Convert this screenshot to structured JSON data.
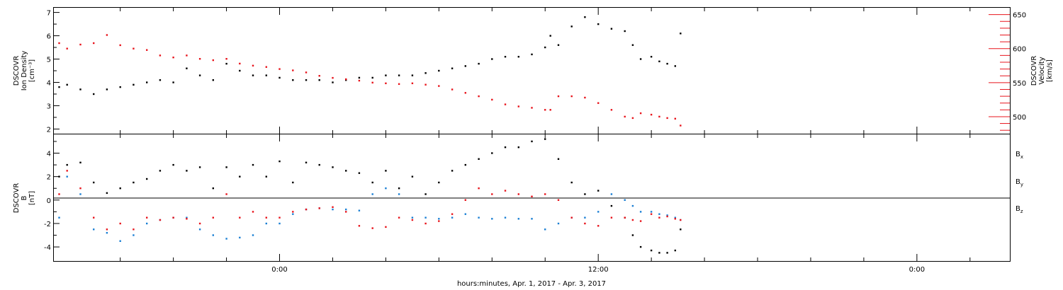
{
  "chart_data": [
    {
      "type": "scatter",
      "panel": "top",
      "ylabel_left": [
        "DSCOVR",
        "Ion Density",
        "[cm⁻³]"
      ],
      "ylabel_right": [
        "DSCOVR",
        "Velocity",
        "[km/s]"
      ],
      "ylim_left": [
        1.8,
        7.2
      ],
      "ylim_right": [
        475,
        660
      ],
      "yticks_left": [
        "2",
        "3",
        "4",
        "5",
        "6",
        "7"
      ],
      "yticks_right": [
        "500",
        "550",
        "600",
        "650"
      ],
      "colors": {
        "density": "#000000",
        "velocity": "#e8141c"
      },
      "series": [
        {
          "axis": "left",
          "x_hours": [
            -8.3,
            -8,
            -7.5,
            -7,
            -6.5,
            -6,
            -5.5,
            -5,
            -4.5,
            -4,
            -3.5,
            -3,
            -2.5,
            -2,
            -1.5,
            -1,
            -0.5,
            0,
            0.5,
            1,
            1.5,
            2,
            2.5,
            3,
            3.5,
            4,
            4.5,
            5,
            5.5,
            6,
            6.5,
            7,
            7.5,
            8,
            8.5,
            9,
            9.5,
            10,
            10.2,
            10.5,
            11,
            11.5,
            12,
            12.5,
            13,
            13.3,
            13.6,
            14,
            14.3,
            14.6,
            14.9,
            15.1
          ],
          "values": [
            3.8,
            3.9,
            3.7,
            3.5,
            3.7,
            3.8,
            3.9,
            4.0,
            4.1,
            4.0,
            4.6,
            4.3,
            4.1,
            4.8,
            4.5,
            4.3,
            4.3,
            4.2,
            4.1,
            4.1,
            4.1,
            4.0,
            4.1,
            4.2,
            4.2,
            4.3,
            4.3,
            4.3,
            4.4,
            4.5,
            4.6,
            4.7,
            4.8,
            5.0,
            5.1,
            5.1,
            5.2,
            5.5,
            6.0,
            5.6,
            6.4,
            6.8,
            6.5,
            6.3,
            6.2,
            5.6,
            5.0,
            5.1,
            4.9,
            4.8,
            4.7,
            6.1
          ]
        },
        {
          "axis": "right",
          "x_hours": [
            -8.3,
            -8,
            -7.5,
            -7,
            -6.5,
            -6,
            -5.5,
            -5,
            -4.5,
            -4,
            -3.5,
            -3,
            -2.5,
            -2,
            -1.5,
            -1,
            -0.5,
            0,
            0.5,
            1,
            1.5,
            2,
            2.5,
            3,
            3.5,
            4,
            4.5,
            5,
            5.5,
            6,
            6.5,
            7,
            7.5,
            8,
            8.5,
            9,
            9.5,
            10,
            10.2,
            10.5,
            11,
            11.5,
            12,
            12.5,
            13,
            13.3,
            13.6,
            14,
            14.3,
            14.6,
            14.9,
            15.1
          ],
          "values": [
            608,
            600,
            606,
            608,
            620,
            605,
            600,
            598,
            590,
            587,
            590,
            585,
            583,
            585,
            578,
            575,
            573,
            570,
            568,
            565,
            560,
            557,
            555,
            553,
            550,
            549,
            548,
            549,
            547,
            545,
            540,
            535,
            530,
            525,
            518,
            515,
            513,
            510,
            510,
            530,
            530,
            528,
            520,
            510,
            500,
            498,
            505,
            503,
            500,
            498,
            497,
            487
          ]
        }
      ]
    },
    {
      "type": "scatter",
      "panel": "bottom",
      "ylabel": [
        "DSCOVR",
        "B",
        "[nT]"
      ],
      "ylim": [
        -5.2,
        5.6
      ],
      "yticks": [
        "-4",
        "-2",
        "0",
        "2",
        "4"
      ],
      "xlabel": "hours:minutes, Apr.  1, 2017 - Apr.  3, 2017",
      "xticks": [
        "0:00",
        "12:00",
        "0:00"
      ],
      "xlim_hours": [
        -8.5,
        27.5
      ],
      "zero_line": true,
      "series": [
        {
          "name": "Bₓ",
          "color": "#000000",
          "x_hours": [
            -8.3,
            -8,
            -7.5,
            -7,
            -6.5,
            -6,
            -5.5,
            -5,
            -4.5,
            -4,
            -3.5,
            -3,
            -2.5,
            -2,
            -1.5,
            -1,
            -0.5,
            0,
            0.5,
            1,
            1.5,
            2,
            2.5,
            3,
            3.5,
            4,
            4.5,
            5,
            5.5,
            6,
            6.5,
            7,
            7.5,
            8,
            8.5,
            9,
            9.5,
            10,
            10.5,
            11,
            11.5,
            12,
            12.5,
            13,
            13.3,
            13.6,
            14,
            14.3,
            14.6,
            14.9,
            15.1
          ],
          "values": [
            2.0,
            3.0,
            3.2,
            1.5,
            0.6,
            1.0,
            1.5,
            1.8,
            2.5,
            3.0,
            2.5,
            2.8,
            1.0,
            2.8,
            2.0,
            3.0,
            2.0,
            3.3,
            1.5,
            3.2,
            3.0,
            2.8,
            2.5,
            2.3,
            1.5,
            2.5,
            1.0,
            2.0,
            0.5,
            1.5,
            2.5,
            3.0,
            3.5,
            4.0,
            4.5,
            4.5,
            5.0,
            5.2,
            3.5,
            1.5,
            0.5,
            0.8,
            -0.5,
            -1.5,
            -3.0,
            -4.0,
            -4.3,
            -4.5,
            -4.5,
            -4.3,
            -2.5
          ]
        },
        {
          "name": "B_y",
          "color": "#1a7fd4",
          "x_hours": [
            -8.3,
            -8,
            -7.5,
            -7,
            -6.5,
            -6,
            -5.5,
            -5,
            -4.5,
            -4,
            -3.5,
            -3,
            -2.5,
            -2,
            -1.5,
            -1,
            -0.5,
            0,
            0.5,
            1,
            1.5,
            2,
            2.5,
            3,
            3.5,
            4,
            4.5,
            5,
            5.5,
            6,
            6.5,
            7,
            7.5,
            8,
            8.5,
            9,
            9.5,
            10,
            10.5,
            11,
            11.5,
            12,
            12.5,
            13,
            13.3,
            13.6,
            14,
            14.3,
            14.6,
            14.9,
            15.1
          ],
          "values": [
            -1.5,
            2.0,
            0.5,
            -2.5,
            -2.8,
            -3.5,
            -3.0,
            -2.0,
            -1.7,
            -1.5,
            -1.5,
            -2.5,
            -3.0,
            -3.3,
            -3.2,
            -3.0,
            -2.0,
            -2.0,
            -1.2,
            -0.8,
            -0.7,
            -0.8,
            -0.8,
            -0.9,
            0.5,
            1.0,
            0.5,
            -1.5,
            -1.5,
            -1.6,
            -1.5,
            -1.2,
            -1.5,
            -1.6,
            -1.5,
            -1.6,
            -1.6,
            -2.5,
            -2.0,
            -1.5,
            -1.5,
            -1.0,
            0.5,
            0.0,
            -0.5,
            -1.0,
            -1.0,
            -1.2,
            -1.3,
            -1.5,
            -1.7
          ]
        },
        {
          "name": "B_z",
          "color": "#e8141c",
          "x_hours": [
            -8.3,
            -8,
            -7.5,
            -7,
            -6.5,
            -6,
            -5.5,
            -5,
            -4.5,
            -4,
            -3.5,
            -3,
            -2.5,
            -2,
            -1.5,
            -1,
            -0.5,
            0,
            0.5,
            1,
            1.5,
            2,
            2.5,
            3,
            3.5,
            4,
            4.5,
            5,
            5.5,
            6,
            6.5,
            7,
            7.5,
            8,
            8.5,
            9,
            9.5,
            10,
            10.5,
            11,
            11.5,
            12,
            12.5,
            13,
            13.3,
            13.6,
            14,
            14.3,
            14.6,
            14.9,
            15.1
          ],
          "values": [
            0.5,
            2.5,
            1.0,
            -1.5,
            -2.5,
            -2.0,
            -2.5,
            -1.5,
            -1.7,
            -1.5,
            -1.6,
            -2.0,
            -1.5,
            0.5,
            -1.5,
            -1.0,
            -1.5,
            -1.5,
            -1.0,
            -0.8,
            -0.7,
            -0.6,
            -1.0,
            -2.2,
            -2.4,
            -2.3,
            -1.5,
            -1.7,
            -2.0,
            -1.8,
            -1.2,
            0.0,
            1.0,
            0.5,
            0.8,
            0.5,
            0.3,
            0.5,
            0.0,
            -1.5,
            -2.0,
            -2.2,
            -1.5,
            -1.5,
            -1.7,
            -1.8,
            -1.2,
            -1.5,
            -1.4,
            -1.6,
            -1.7
          ]
        }
      ],
      "legend": [
        {
          "label": "B",
          "sub": "x",
          "color": "#000000"
        },
        {
          "label": "B",
          "sub": "y",
          "color": "#1a7fd4"
        },
        {
          "label": "B",
          "sub": "z",
          "color": "#e8141c"
        }
      ]
    }
  ]
}
